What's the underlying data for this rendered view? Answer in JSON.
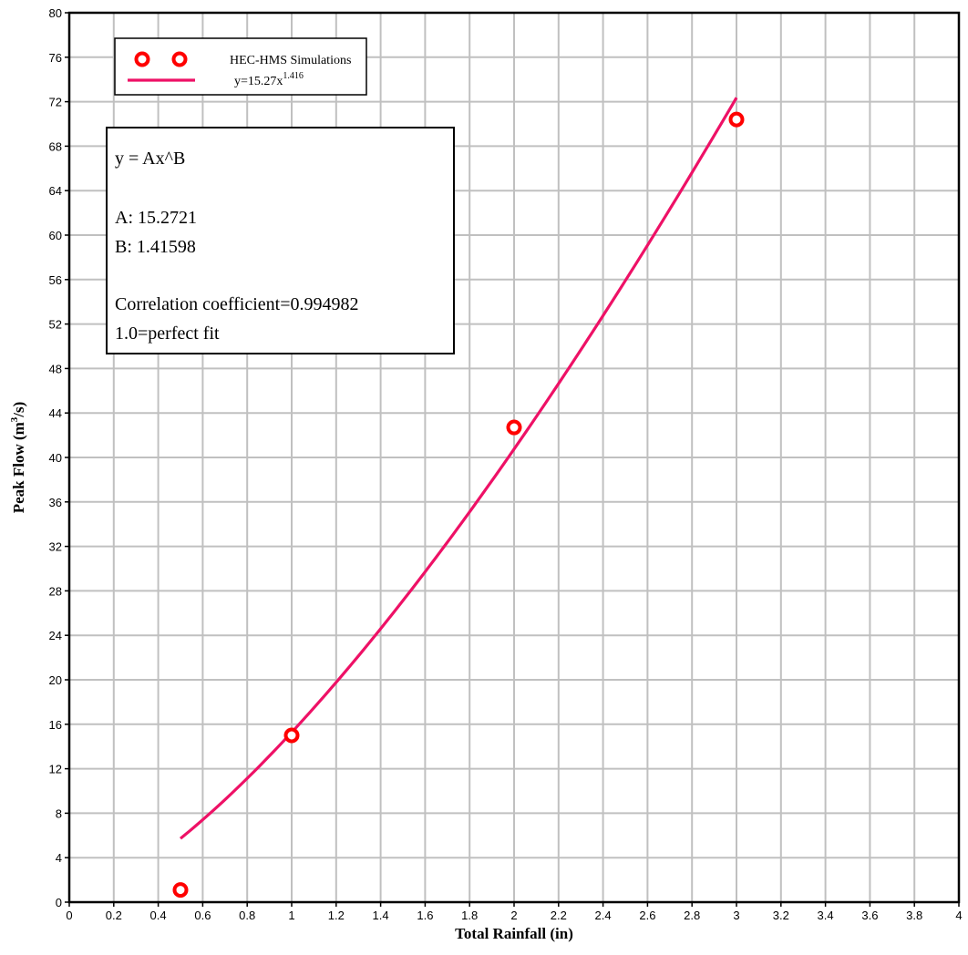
{
  "chart_data": {
    "type": "scatter",
    "xlabel": "Total Rainfall (in)",
    "ylabel_main": "Peak Flow (m",
    "ylabel_sup": "3",
    "ylabel_tail": "/s)",
    "xlim": [
      0,
      4
    ],
    "ylim": [
      0,
      80
    ],
    "x_ticks": [
      0,
      0.2,
      0.4,
      0.6,
      0.8,
      1,
      1.2,
      1.4,
      1.6,
      1.8,
      2,
      2.2,
      2.4,
      2.6,
      2.8,
      3,
      3.2,
      3.4,
      3.6,
      3.8,
      4
    ],
    "x_tick_labels": [
      "0",
      "0.2",
      "0.4",
      "0.6",
      "0.8",
      "1",
      "1.2",
      "1.4",
      "1.6",
      "1.8",
      "2",
      "2.2",
      "2.4",
      "2.6",
      "2.8",
      "3",
      "3.2",
      "3.4",
      "3.6",
      "3.8",
      "4"
    ],
    "y_ticks": [
      0,
      4,
      8,
      12,
      16,
      20,
      24,
      28,
      32,
      36,
      40,
      44,
      48,
      52,
      56,
      60,
      64,
      68,
      72,
      76,
      80
    ],
    "y_tick_labels": [
      "0",
      "4",
      "8",
      "12",
      "16",
      "20",
      "24",
      "28",
      "32",
      "36",
      "40",
      "44",
      "48",
      "52",
      "56",
      "60",
      "64",
      "68",
      "72",
      "76",
      "80"
    ],
    "grid": true,
    "legend_position": "top-left",
    "series": [
      {
        "name": "HEC-HMS Simulations",
        "kind": "markers",
        "color": "#ff0000",
        "points": [
          {
            "x": 0.5,
            "y": 1.1
          },
          {
            "x": 1,
            "y": 15.0
          },
          {
            "x": 2,
            "y": 42.7
          },
          {
            "x": 3,
            "y": 70.4
          }
        ]
      },
      {
        "name_main": "y=15.27x",
        "name_sup": "1.416",
        "kind": "curve",
        "color": "#ee1166",
        "A": 15.2721,
        "B": 1.41598,
        "x_range": [
          0.5,
          3
        ]
      }
    ],
    "fit_box": {
      "equation": "y = Ax^B",
      "a_line": "A: 15.2721",
      "b_line": "B: 1.41598",
      "corr_line": "Correlation coefficient=0.994982",
      "perfect_line": "1.0=perfect fit"
    }
  }
}
